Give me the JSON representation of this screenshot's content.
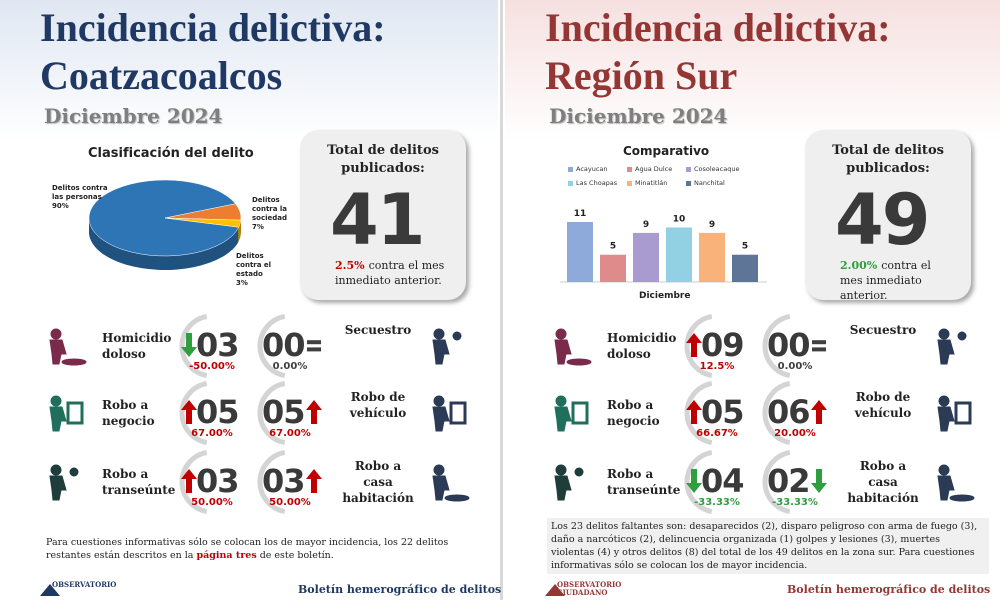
{
  "chart_data": [
    {
      "type": "pie",
      "title": "Clasificación del delito",
      "categories": [
        "Delitos contra las personas",
        "Delitos contra la sociedad",
        "Delitos contra el estado"
      ],
      "values": [
        90,
        7,
        3
      ],
      "value_labels": [
        "90%",
        "7%",
        "3%"
      ],
      "colors": [
        "#2e75b6",
        "#ed7d31",
        "#ffc000"
      ]
    },
    {
      "type": "bar",
      "title": "Comparativo",
      "categories": [
        "Acayucan",
        "Agua Dulce",
        "Cosoleacaque",
        "Las Choapas",
        "Minatitlán",
        "Nanchital"
      ],
      "values": [
        11,
        5,
        9,
        10,
        9,
        5
      ],
      "colors": [
        "#8eaadb",
        "#e08b8b",
        "#a99bd0",
        "#92d0e3",
        "#f8b27a",
        "#5f7597"
      ],
      "xlabel": "Diciembre"
    }
  ],
  "panels": [
    {
      "title_color": "#1f3864",
      "title": [
        "Incidencia delictiva:",
        "Coatzacoalcos"
      ],
      "period": "Diciembre 2024",
      "total": {
        "label": "Total de delitos publicados:",
        "value": "41",
        "trend": "up",
        "change": "2.5%",
        "change_color": "#c00000",
        "change_text": "contra el mes inmediato anterior."
      },
      "rows": [
        {
          "left": {
            "label": "Homicidio doloso",
            "value": "03",
            "trend": "down",
            "change": "-50.00%",
            "change_color": "#c00000"
          },
          "right": {
            "label": "Secuestro",
            "value": "00",
            "trend": "equal",
            "change": "0.00%",
            "change_color": "#404040"
          }
        },
        {
          "left": {
            "label": "Robo a negocio",
            "value": "05",
            "trend": "up",
            "change": "67.00%",
            "change_color": "#c00000"
          },
          "right": {
            "label": "Robo de vehículo",
            "value": "05",
            "trend": "up",
            "change": "67.00%",
            "change_color": "#c00000"
          }
        },
        {
          "left": {
            "label": "Robo a transeúnte",
            "value": "03",
            "trend": "up",
            "change": "50.00%",
            "change_color": "#c00000"
          },
          "right": {
            "label": "Robo a casa habitación",
            "value": "03",
            "trend": "up",
            "change": "50.00%",
            "change_color": "#c00000"
          }
        }
      ],
      "note": [
        "Para cuestiones informativas sólo se colocan los de mayor incidencia, los 22 delitos restantes están descritos en la",
        "página tres",
        "de este boletín."
      ],
      "note_highlight": 1,
      "footer": {
        "logo": [
          "OBSERVATORIO"
        ],
        "text": "Boletín hemerográfico de delitos"
      }
    },
    {
      "title_color": "#943634",
      "title": [
        "Incidencia delictiva:",
        "Región Sur"
      ],
      "period": "Diciembre 2024",
      "total": {
        "label": "Total de delitos publicados:",
        "value": "49",
        "trend": "down",
        "change": "2.00%",
        "change_color": "#2e9e3e",
        "change_text": "contra el mes inmediato anterior."
      },
      "rows": [
        {
          "left": {
            "label": "Homicidio doloso",
            "value": "09",
            "trend": "up",
            "change": "12.5%",
            "change_color": "#c00000"
          },
          "right": {
            "label": "Secuestro",
            "value": "00",
            "trend": "equal",
            "change": "0.00%",
            "change_color": "#404040"
          }
        },
        {
          "left": {
            "label": "Robo a negocio",
            "value": "05",
            "trend": "up",
            "change": "66.67%",
            "change_color": "#c00000"
          },
          "right": {
            "label": "Robo de vehículo",
            "value": "06",
            "trend": "up",
            "change": "20.00%",
            "change_color": "#c00000"
          }
        },
        {
          "left": {
            "label": "Robo a transeúnte",
            "value": "04",
            "trend": "down",
            "change": "-33.33%",
            "change_color": "#2e9e3e"
          },
          "right": {
            "label": "Robo a casa habitación",
            "value": "02",
            "trend": "down",
            "change": "-33.33%",
            "change_color": "#2e9e3e"
          }
        }
      ],
      "note": [
        "Los 23 delitos faltantes son: desaparecidos (2), disparo peligroso con arma de fuego (3), daño a narcóticos (2), delincuencia organizada (1) golpes y lesiones (3), muertes violentas (4) y otros delitos (8) del total de los 49 delitos en la zona sur. Para cuestiones informativas sólo se colocan los de mayor incidencia."
      ],
      "note_highlight": -1,
      "footer": {
        "logo": [
          "OBSERVATORIO",
          "CIUDADANO"
        ],
        "text": "Boletín hemerográfico de delitos"
      }
    }
  ]
}
